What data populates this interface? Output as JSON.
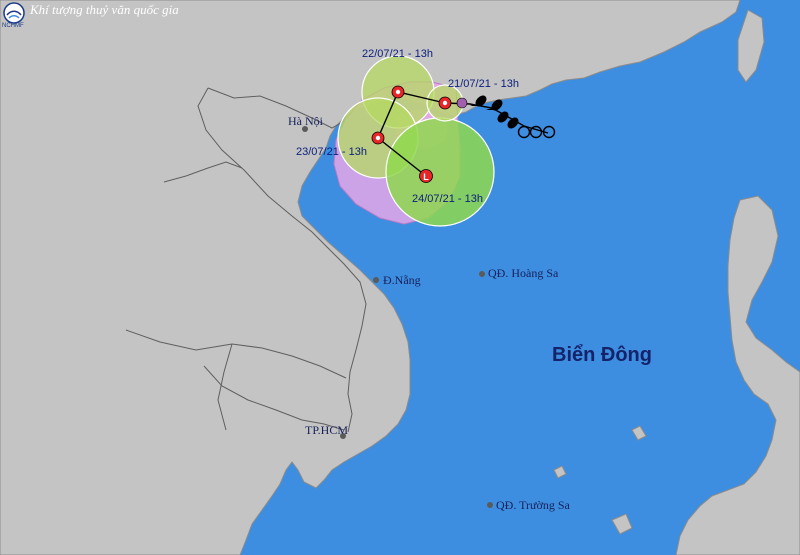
{
  "header": {
    "title": "Khí tượng thuỷ văn quốc gia",
    "logo_text": "NCHMF"
  },
  "sea_label": "Biển Đông",
  "cities": [
    {
      "name": "Hà Nội"
    },
    {
      "name": "Đ.Nẵng"
    },
    {
      "name": "TP.HCM"
    }
  ],
  "islands": [
    {
      "name": "QĐ. Hoàng Sa"
    },
    {
      "name": "QĐ. Trường Sa"
    }
  ],
  "forecast_points": [
    {
      "date": "21/07/21 - 13h",
      "icon": "storm-current-icon"
    },
    {
      "date": "22/07/21 - 13h",
      "icon": "tropical-depression-icon"
    },
    {
      "date": "23/07/21 - 13h",
      "icon": "tropical-depression-icon"
    },
    {
      "date": "24/07/21 - 13h",
      "icon": "low-pressure-icon",
      "symbol": "L"
    }
  ],
  "colors": {
    "sea": "#3d8ee0",
    "land": "#c4c4c4",
    "track": "#000000",
    "risk_zone_outer": "#e5a7e6",
    "risk_zone_inner": "#8fd84f",
    "storm_center": "#e8262a"
  }
}
